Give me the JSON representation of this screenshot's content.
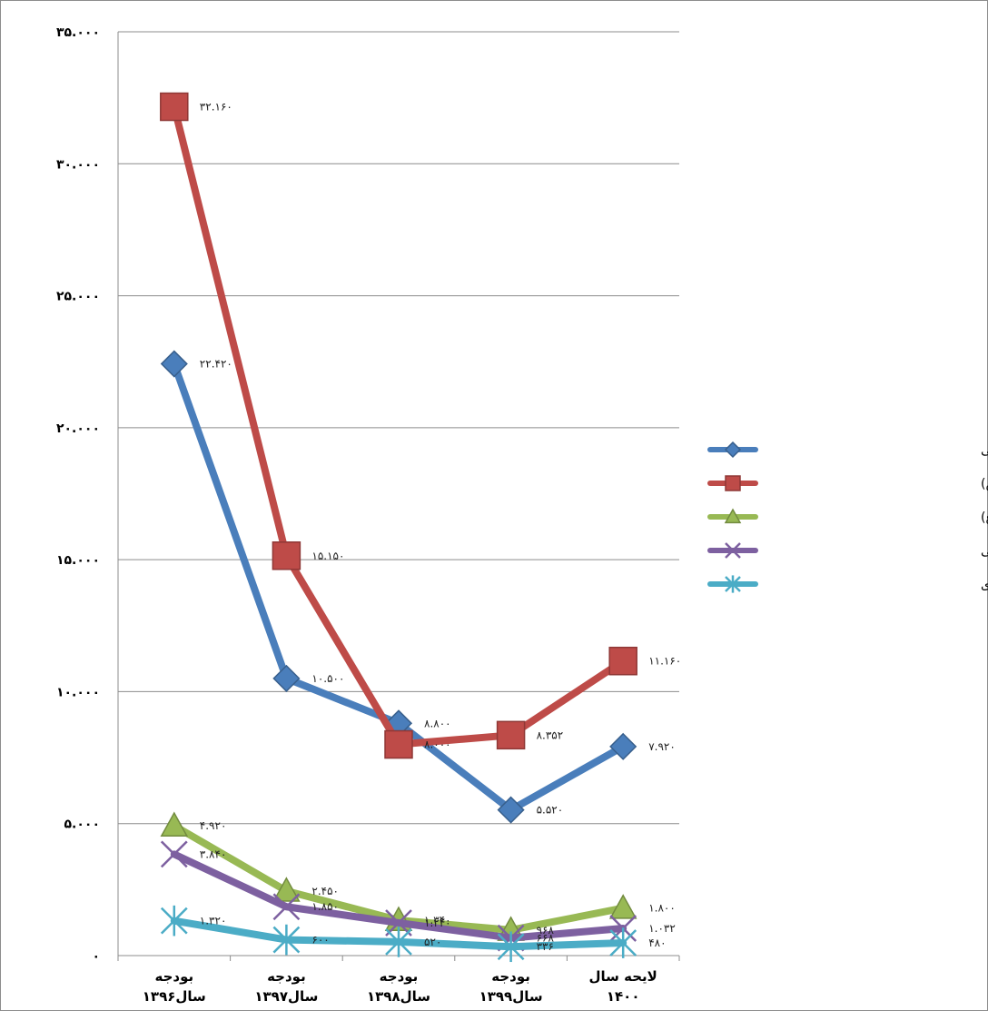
{
  "chart_data": {
    "type": "line",
    "categories": [
      [
        "بودجه",
        "سال۱۳۹۶"
      ],
      [
        "بودجه",
        "سال۱۳۹۷"
      ],
      [
        "بودجه",
        "سال۱۳۹۸"
      ],
      [
        "بودجه",
        "سال۱۳۹۹"
      ],
      [
        "لایحه سال",
        "۱۴۰۰"
      ]
    ],
    "ylim": [
      0,
      35000
    ],
    "yticks": [
      0,
      5000,
      10000,
      15000,
      20000,
      25000,
      30000,
      35000
    ],
    "ytick_labels": [
      "۰",
      "۵.۰۰۰",
      "۱۰.۰۰۰",
      "۱۵.۰۰۰",
      "۲۰.۰۰۰",
      "۲۵.۰۰۰",
      "۳۰.۰۰۰",
      "۳۵.۰۰۰"
    ],
    "grid": true,
    "legend_position": "right",
    "series": [
      {
        "name": "سازمان فرهنگ و ارتباطات اسلامی",
        "color": "#4a7ebb",
        "marker": "diamond",
        "values": [
          22420,
          10500,
          8800,
          5520,
          7920
        ],
        "labels": [
          "۲۲.۴۲۰",
          "۱۰.۵۰۰",
          "۸.۸۰۰",
          "۵.۵۲۰",
          "۷.۹۲۰"
        ]
      },
      {
        "name": "جامعه المصطفی العالمیه(ص)",
        "color": "#be4b48",
        "marker": "square",
        "values": [
          32160,
          15150,
          8000,
          8352,
          11160
        ],
        "labels": [
          "۳۲.۱۶۰",
          "۱۵.۱۵۰",
          "۸.۰۰۰",
          "۸.۳۵۲",
          "۱۱.۱۶۰"
        ]
      },
      {
        "name": "مجمع جهانی اهل بیت(ع)",
        "color": "#98b954",
        "marker": "triangle",
        "values": [
          4920,
          2450,
          1340,
          968,
          1800
        ],
        "labels": [
          "۴.۹۲۰",
          "۲.۴۵۰",
          "۱.۳۴۰",
          "۹۶۸",
          "۱.۸۰۰"
        ]
      },
      {
        "name": "مجمع تقریب مذاهب اسلامی",
        "color": "#7d60a0",
        "marker": "x",
        "values": [
          3840,
          1850,
          1240,
          668,
          1032
        ],
        "labels": [
          "۳.۸۴۰",
          "۱.۸۵۰",
          "۱.۲۴۰",
          "۶۶۸",
          "۱.۰۳۲"
        ]
      },
      {
        "name": "بنیاد سعدی",
        "color": "#4bacc6",
        "marker": "star",
        "values": [
          1320,
          600,
          520,
          336,
          480
        ],
        "labels": [
          "۱.۳۲۰",
          "۶۰۰",
          "۵۲۰",
          "۳۳۶",
          "۴۸۰"
        ]
      }
    ]
  }
}
